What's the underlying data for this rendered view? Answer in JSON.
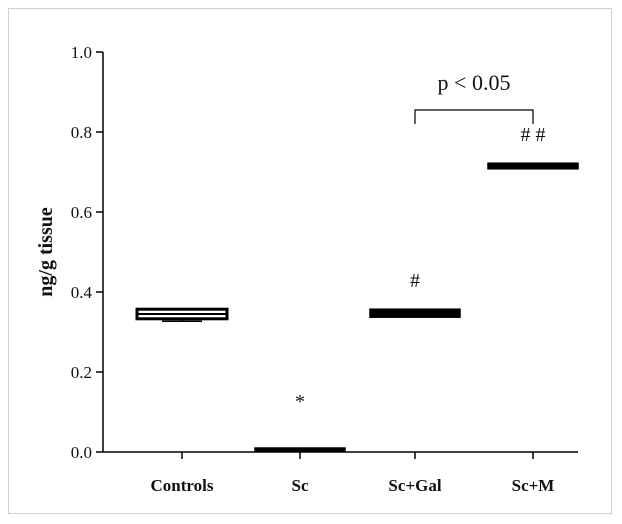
{
  "chart_data": {
    "type": "box",
    "title": "",
    "xlabel": "",
    "ylabel": "ng/g tissue",
    "ylim": [
      0,
      1.0
    ],
    "yticks": [
      "0.0",
      "0.2",
      "0.4",
      "0.6",
      "0.8",
      "1.0"
    ],
    "grid": false,
    "categories": [
      "Controls",
      "Sc",
      "Sc+Gal",
      "Sc+M"
    ],
    "boxes": [
      {
        "category": "Controls",
        "q1": 0.333,
        "median": 0.345,
        "q3": 0.357,
        "min": 0.327,
        "max": 0.357,
        "filled": false,
        "annotation": ""
      },
      {
        "category": "Sc",
        "q1": 0.003,
        "median": 0.007,
        "q3": 0.01,
        "min": 0.003,
        "max": 0.01,
        "filled": true,
        "annotation": "*"
      },
      {
        "category": "Sc+Gal",
        "q1": 0.337,
        "median": 0.347,
        "q3": 0.357,
        "min": 0.337,
        "max": 0.36,
        "filled": true,
        "annotation": "#"
      },
      {
        "category": "Sc+M",
        "q1": 0.708,
        "median": 0.715,
        "q3": 0.722,
        "min": 0.708,
        "max": 0.722,
        "filled": true,
        "annotation": "# #"
      }
    ],
    "comparison": {
      "from": "Sc+Gal",
      "to": "Sc+M",
      "label": "p < 0.05",
      "bracket_y": 0.855
    },
    "colors": {
      "box_fill": "#000000",
      "box_stroke": "#000000",
      "axis": "#000000",
      "text": "#111111"
    }
  }
}
